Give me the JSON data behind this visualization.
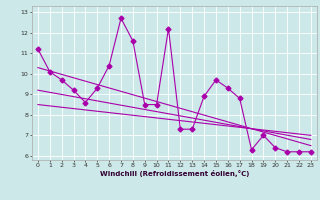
{
  "x": [
    0,
    1,
    2,
    3,
    4,
    5,
    6,
    7,
    8,
    9,
    10,
    11,
    12,
    13,
    14,
    15,
    16,
    17,
    18,
    19,
    20,
    21,
    22,
    23
  ],
  "y_main": [
    11.2,
    10.1,
    9.7,
    9.2,
    8.6,
    9.3,
    10.4,
    12.7,
    11.6,
    8.5,
    8.5,
    12.2,
    7.3,
    7.3,
    8.9,
    9.7,
    9.3,
    8.8,
    6.3,
    7.0,
    6.4,
    6.2,
    6.2,
    6.2
  ],
  "trend1_x": [
    0,
    23
  ],
  "trend1_y": [
    10.3,
    6.5
  ],
  "trend2_x": [
    0,
    23
  ],
  "trend2_y": [
    9.2,
    6.8
  ],
  "trend3_x": [
    0,
    23
  ],
  "trend3_y": [
    8.5,
    7.0
  ],
  "line_color": "#aa00aa",
  "bg_color": "#cce8e8",
  "grid_color": "#ffffff",
  "xlabel": "Windchill (Refroidissement éolien,°C)",
  "ylabel": "",
  "xlim": [
    -0.5,
    23.5
  ],
  "ylim": [
    5.8,
    13.3
  ],
  "yticks": [
    6,
    7,
    8,
    9,
    10,
    11,
    12,
    13
  ],
  "xticks": [
    0,
    1,
    2,
    3,
    4,
    5,
    6,
    7,
    8,
    9,
    10,
    11,
    12,
    13,
    14,
    15,
    16,
    17,
    18,
    19,
    20,
    21,
    22,
    23
  ],
  "marker": "D",
  "markersize": 2.5,
  "linewidth": 0.8,
  "xlabel_fontsize": 5.0,
  "tick_fontsize": 4.5
}
